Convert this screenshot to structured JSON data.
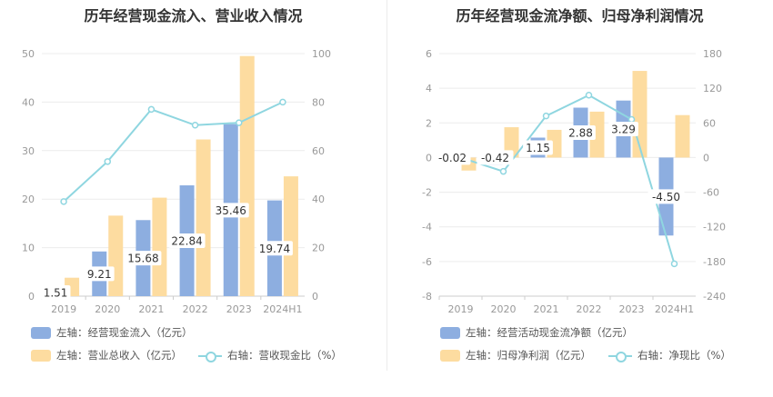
{
  "colors": {
    "bar_blue": "#8daee0",
    "bar_orange": "#fddca0",
    "line_cyan": "#8fd6e0",
    "label_bg": "#ffffff"
  },
  "chart_data": [
    {
      "type": "bar",
      "title": "历年经营现金流入、营业收入情况",
      "categories": [
        "2019",
        "2020",
        "2021",
        "2022",
        "2023",
        "2024H1"
      ],
      "left_axis": {
        "ticks": [
          "0",
          "10",
          "20",
          "30",
          "40",
          "50"
        ],
        "ylim": [
          0,
          50
        ]
      },
      "right_axis": {
        "ticks": [
          "0",
          "20",
          "40",
          "60",
          "80",
          "100"
        ],
        "ylim": [
          0,
          100
        ]
      },
      "series": [
        {
          "name": "左轴：经营现金流入（亿元）",
          "type": "bar",
          "axis": "left",
          "color": "#8daee0",
          "values": [
            1.51,
            9.21,
            15.68,
            22.84,
            35.46,
            19.74
          ],
          "labels": [
            "1.51",
            "9.21",
            "15.68",
            "22.84",
            "35.46",
            "19.74"
          ]
        },
        {
          "name": "左轴：营业总收入（亿元）",
          "type": "bar",
          "axis": "left",
          "color": "#fddca0",
          "values": [
            3.8,
            16.6,
            20.3,
            32.3,
            49.5,
            24.7
          ]
        },
        {
          "name": "右轴：营收现金比（%）",
          "type": "line",
          "axis": "right",
          "color": "#8fd6e0",
          "values": [
            39,
            55.5,
            77,
            70.5,
            71.5,
            80
          ]
        }
      ],
      "legend": [
        {
          "label": "左轴：经营现金流入（亿元）",
          "kind": "bar",
          "color": "#8daee0"
        },
        {
          "label": "左轴：营业总收入（亿元）",
          "kind": "bar",
          "color": "#fddca0"
        },
        {
          "label": "右轴：营收现金比（%）",
          "kind": "line",
          "color": "#8fd6e0"
        }
      ]
    },
    {
      "type": "bar",
      "title": "历年经营现金流净额、归母净利润情况",
      "categories": [
        "2019",
        "2020",
        "2021",
        "2022",
        "2023",
        "2024H1"
      ],
      "left_axis": {
        "ticks": [
          "-8",
          "-6",
          "-4",
          "-2",
          "0",
          "2",
          "4",
          "6"
        ],
        "ylim": [
          -8,
          6
        ]
      },
      "right_axis": {
        "ticks": [
          "-240",
          "-180",
          "-120",
          "-60",
          "0",
          "60",
          "120",
          "180"
        ],
        "ylim": [
          -240,
          180
        ]
      },
      "series": [
        {
          "name": "左轴：经营活动现金流净额（亿元）",
          "type": "bar",
          "axis": "left",
          "color": "#8daee0",
          "values": [
            -0.02,
            -0.42,
            1.15,
            2.88,
            3.29,
            -4.5
          ],
          "labels": [
            "-0.02",
            "-0.42",
            "1.15",
            "2.88",
            "3.29",
            "-4.50"
          ]
        },
        {
          "name": "左轴：归母净利润（亿元）",
          "type": "bar",
          "axis": "left",
          "color": "#fddca0",
          "values": [
            -0.75,
            1.75,
            1.6,
            2.65,
            5.0,
            2.45
          ]
        },
        {
          "name": "右轴：净现比（%）",
          "type": "line",
          "axis": "right",
          "color": "#8fd6e0",
          "values": [
            0,
            -24,
            72,
            108,
            66,
            -184
          ]
        }
      ],
      "legend": [
        {
          "label": "左轴：经营活动现金流净额（亿元）",
          "kind": "bar",
          "color": "#8daee0"
        },
        {
          "label": "左轴：归母净利润（亿元）",
          "kind": "bar",
          "color": "#fddca0"
        },
        {
          "label": "右轴：净现比（%）",
          "kind": "line",
          "color": "#8fd6e0"
        }
      ]
    }
  ]
}
